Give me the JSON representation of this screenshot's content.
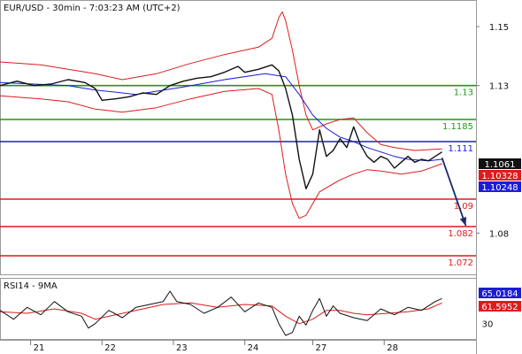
{
  "chart_data": [
    {
      "type": "line",
      "title": "EUR/USD - 30min - 7:03:23 AM (UTC+2)",
      "subtype": "candlestick price chart with bollinger bands and moving average",
      "x_tick_labels": [
        "21",
        "22",
        "23",
        "24",
        "27",
        "28"
      ],
      "y_tick_labels": [
        "1.15",
        "1.13",
        "1.08"
      ],
      "ylim": [
        1.066,
        1.159
      ],
      "grid": false,
      "horizontal_levels": [
        {
          "label": "1.13",
          "value": 1.13,
          "color": "#1a9a1a"
        },
        {
          "label": "1.1185",
          "value": 1.1185,
          "color": "#1a9a1a"
        },
        {
          "label": "1.111",
          "value": 1.111,
          "color": "#1c1cd8"
        },
        {
          "label": "1.09",
          "value": 1.0915,
          "color": "#dc1c1c"
        },
        {
          "label": "1.082",
          "value": 1.0822,
          "color": "#dc1c1c"
        },
        {
          "label": "1.072",
          "value": 1.0723,
          "color": "#dc1c1c"
        }
      ],
      "price_badges": [
        {
          "label": "1.1061",
          "value": 1.1061,
          "color": "#111111"
        },
        {
          "label": "1.10328",
          "value": 1.10328,
          "color": "#dc1c1c"
        },
        {
          "label": "1.10248",
          "value": 1.10248,
          "color": "#1c1cd8"
        }
      ],
      "close_path": [
        [
          0,
          1.13
        ],
        [
          5,
          1.1315
        ],
        [
          10,
          1.13
        ],
        [
          15,
          1.1305
        ],
        [
          20,
          1.132
        ],
        [
          25,
          1.131
        ],
        [
          28,
          1.129
        ],
        [
          30,
          1.125
        ],
        [
          34,
          1.1255
        ],
        [
          38,
          1.1262
        ],
        [
          42,
          1.1275
        ],
        [
          46,
          1.127
        ],
        [
          50,
          1.13
        ],
        [
          54,
          1.1315
        ],
        [
          58,
          1.1325
        ],
        [
          62,
          1.133
        ],
        [
          66,
          1.1345
        ],
        [
          70,
          1.1365
        ],
        [
          72,
          1.1345
        ],
        [
          76,
          1.1355
        ],
        [
          80,
          1.137
        ],
        [
          82,
          1.135
        ],
        [
          84,
          1.129
        ],
        [
          86,
          1.12
        ],
        [
          88,
          1.105
        ],
        [
          90,
          1.095
        ],
        [
          92,
          1.1
        ],
        [
          94,
          1.115
        ],
        [
          96,
          1.106
        ],
        [
          98,
          1.108
        ],
        [
          100,
          1.112
        ],
        [
          102,
          1.109
        ],
        [
          104,
          1.116
        ],
        [
          106,
          1.11
        ],
        [
          108,
          1.106
        ],
        [
          110,
          1.104
        ],
        [
          112,
          1.106
        ],
        [
          114,
          1.105
        ],
        [
          116,
          1.102
        ],
        [
          118,
          1.104
        ],
        [
          120,
          1.106
        ],
        [
          122,
          1.104
        ],
        [
          124,
          1.105
        ],
        [
          126,
          1.1045
        ],
        [
          128,
          1.106
        ],
        [
          130,
          1.1075
        ]
      ],
      "ma_path": [
        [
          0,
          1.131
        ],
        [
          20,
          1.13
        ],
        [
          28,
          1.1285
        ],
        [
          40,
          1.127
        ],
        [
          54,
          1.1295
        ],
        [
          66,
          1.132
        ],
        [
          78,
          1.134
        ],
        [
          84,
          1.133
        ],
        [
          88,
          1.127
        ],
        [
          92,
          1.12
        ],
        [
          96,
          1.1155
        ],
        [
          100,
          1.1125
        ],
        [
          104,
          1.111
        ],
        [
          108,
          1.109
        ],
        [
          112,
          1.1075
        ],
        [
          116,
          1.106
        ],
        [
          120,
          1.105
        ],
        [
          126,
          1.1045
        ],
        [
          130,
          1.105
        ]
      ],
      "upper_band_path": [
        [
          0,
          1.138
        ],
        [
          12,
          1.137
        ],
        [
          20,
          1.1355
        ],
        [
          28,
          1.134
        ],
        [
          36,
          1.132
        ],
        [
          46,
          1.134
        ],
        [
          56,
          1.1375
        ],
        [
          66,
          1.1405
        ],
        [
          76,
          1.143
        ],
        [
          80,
          1.146
        ],
        [
          82,
          1.153
        ],
        [
          83,
          1.155
        ],
        [
          84,
          1.152
        ],
        [
          86,
          1.142
        ],
        [
          88,
          1.13
        ],
        [
          90,
          1.12
        ],
        [
          92,
          1.115
        ],
        [
          96,
          1.117
        ],
        [
          100,
          1.1185
        ],
        [
          104,
          1.119
        ],
        [
          108,
          1.114
        ],
        [
          112,
          1.11
        ],
        [
          116,
          1.109
        ],
        [
          122,
          1.108
        ],
        [
          130,
          1.1085
        ]
      ],
      "lower_band_path": [
        [
          0,
          1.1265
        ],
        [
          12,
          1.1255
        ],
        [
          20,
          1.1245
        ],
        [
          28,
          1.122
        ],
        [
          36,
          1.121
        ],
        [
          46,
          1.1225
        ],
        [
          56,
          1.1255
        ],
        [
          66,
          1.128
        ],
        [
          76,
          1.129
        ],
        [
          80,
          1.127
        ],
        [
          82,
          1.115
        ],
        [
          84,
          1.1
        ],
        [
          86,
          1.09
        ],
        [
          88,
          1.085
        ],
        [
          90,
          1.086
        ],
        [
          94,
          1.094
        ],
        [
          100,
          1.098
        ],
        [
          104,
          1.1
        ],
        [
          108,
          1.1015
        ],
        [
          112,
          1.101
        ],
        [
          118,
          1.1
        ],
        [
          124,
          1.101
        ],
        [
          130,
          1.1035
        ]
      ],
      "forecast_arrow": {
        "from": [
          130,
          1.1055
        ],
        "to": [
          137,
          1.0825
        ]
      }
    },
    {
      "type": "line",
      "title": "RSI14 - 9MA",
      "y_tick_labels": [
        "70",
        "30"
      ],
      "ylim": [
        8,
        92
      ],
      "rsi_value_label": "65.0184",
      "ma_value_label": "61.5952",
      "rsi_path": [
        [
          0,
          48
        ],
        [
          4,
          36
        ],
        [
          8,
          52
        ],
        [
          12,
          42
        ],
        [
          16,
          60
        ],
        [
          20,
          46
        ],
        [
          24,
          40
        ],
        [
          26,
          24
        ],
        [
          28,
          30
        ],
        [
          32,
          48
        ],
        [
          36,
          38
        ],
        [
          40,
          52
        ],
        [
          44,
          56
        ],
        [
          48,
          60
        ],
        [
          50,
          74
        ],
        [
          52,
          60
        ],
        [
          56,
          56
        ],
        [
          60,
          44
        ],
        [
          64,
          52
        ],
        [
          68,
          66
        ],
        [
          72,
          46
        ],
        [
          76,
          58
        ],
        [
          80,
          52
        ],
        [
          82,
          30
        ],
        [
          84,
          14
        ],
        [
          86,
          18
        ],
        [
          88,
          40
        ],
        [
          90,
          28
        ],
        [
          92,
          48
        ],
        [
          94,
          64
        ],
        [
          96,
          40
        ],
        [
          98,
          54
        ],
        [
          100,
          44
        ],
        [
          104,
          38
        ],
        [
          108,
          34
        ],
        [
          112,
          50
        ],
        [
          116,
          42
        ],
        [
          120,
          52
        ],
        [
          124,
          48
        ],
        [
          128,
          60
        ],
        [
          130,
          64
        ]
      ],
      "ma_path": [
        [
          0,
          46
        ],
        [
          8,
          44
        ],
        [
          16,
          50
        ],
        [
          24,
          44
        ],
        [
          28,
          36
        ],
        [
          34,
          42
        ],
        [
          40,
          48
        ],
        [
          48,
          56
        ],
        [
          56,
          58
        ],
        [
          64,
          52
        ],
        [
          72,
          56
        ],
        [
          80,
          54
        ],
        [
          84,
          40
        ],
        [
          88,
          30
        ],
        [
          92,
          36
        ],
        [
          96,
          48
        ],
        [
          100,
          48
        ],
        [
          104,
          44
        ],
        [
          108,
          42
        ],
        [
          114,
          44
        ],
        [
          120,
          46
        ],
        [
          126,
          50
        ],
        [
          130,
          58
        ]
      ]
    }
  ],
  "colors": {
    "price": "#111111",
    "moving_average": "#1c1cd8",
    "bands": "#dc1c1c",
    "arrow": "#1a2a6a",
    "rsi": "#111111",
    "rsi_ma": "#dc1c1c",
    "background": "#ffffff"
  }
}
